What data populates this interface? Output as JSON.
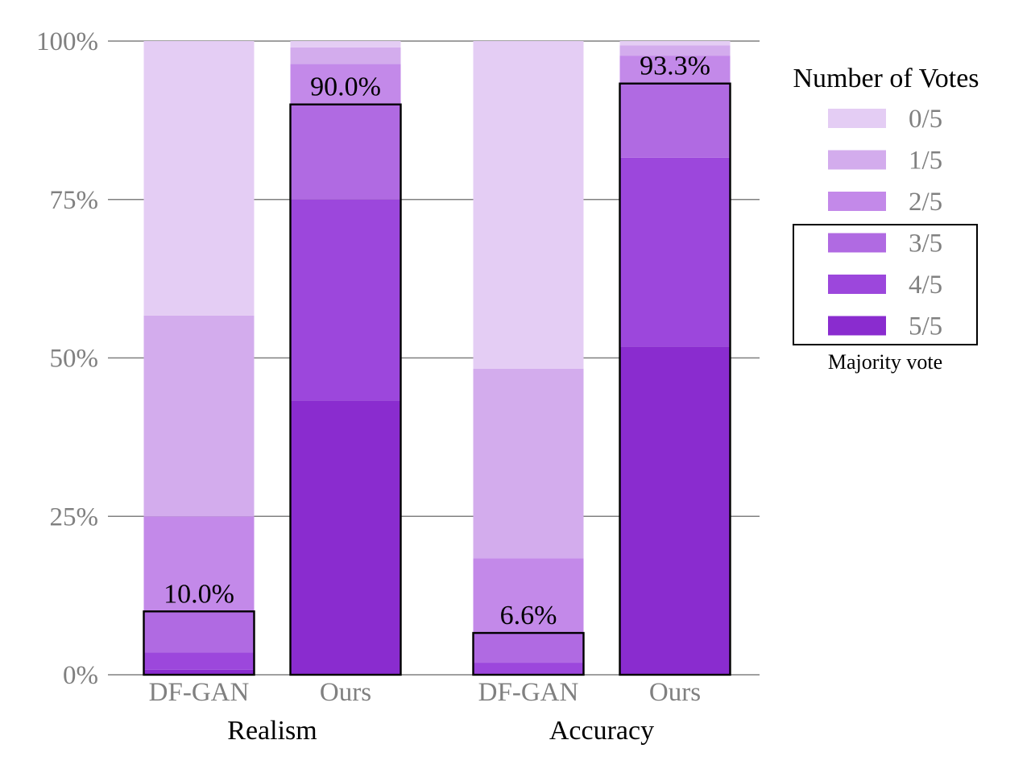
{
  "chart_data": {
    "type": "bar",
    "stacked": true,
    "yticks": [
      "0%",
      "25%",
      "50%",
      "75%",
      "100%"
    ],
    "ylim": [
      0,
      100
    ],
    "grid": true,
    "groups": [
      {
        "label": "Realism",
        "categories": [
          "DF-GAN",
          "Ours"
        ]
      },
      {
        "label": "Accuracy",
        "categories": [
          "DF-GAN",
          "Ours"
        ]
      }
    ],
    "categories": [
      "DF-GAN",
      "Ours",
      "DF-GAN",
      "Ours"
    ],
    "series": [
      {
        "name": "5/5",
        "color": "#8a2ccf",
        "values": [
          0.8,
          43.3,
          0.0,
          51.8
        ]
      },
      {
        "name": "4/5",
        "color": "#9c47dc",
        "values": [
          2.7,
          31.7,
          1.9,
          29.8
        ]
      },
      {
        "name": "3/5",
        "color": "#b06ae2",
        "values": [
          6.5,
          15.0,
          4.7,
          11.7
        ]
      },
      {
        "name": "2/5",
        "color": "#c389e9",
        "values": [
          15.0,
          6.4,
          11.8,
          4.4
        ]
      },
      {
        "name": "1/5",
        "color": "#d3aced",
        "values": [
          31.7,
          2.6,
          29.9,
          1.6
        ]
      },
      {
        "name": "0/5",
        "color": "#e4cdf4",
        "values": [
          43.3,
          1.0,
          51.7,
          0.7
        ]
      }
    ],
    "majority_values": [
      10.0,
      90.0,
      6.6,
      93.3
    ],
    "data_labels": [
      "10.0%",
      "90.0%",
      "6.6%",
      "93.3%"
    ],
    "legend": {
      "title": "Number of Votes",
      "position": "right",
      "entries": [
        "0/5",
        "1/5",
        "2/5",
        "3/5",
        "4/5",
        "5/5"
      ],
      "majority_note": "Majority vote"
    }
  }
}
